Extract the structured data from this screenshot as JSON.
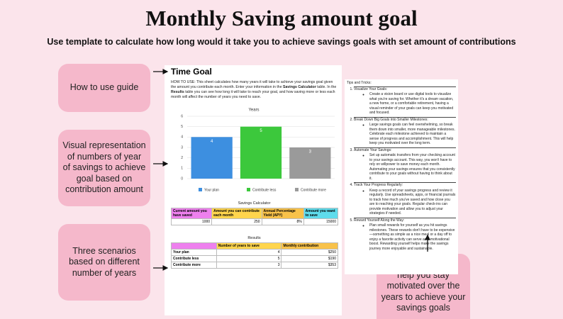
{
  "header": {
    "title": "Monthly Saving amount goal",
    "subtitle": "Use template to calculate how long would it take you to achieve savings goals with set amount of contributions"
  },
  "callouts": [
    "How to use guide",
    "Visual representation of numbers of year of savings to achieve goal based on contribution amount",
    "Three scenarios based on different number of years",
    "Tips and tricks to help you stay motivated over the years to achieve your savings goals"
  ],
  "sheet": {
    "title": "Time Goal",
    "instructions": [
      "HOW TO USE: This sheet calculates how many years it will take to achieve your savings goal given the amount you contribute each month. Enter your information in the ",
      "Savings Calculator",
      " table. In the ",
      "Results",
      " table you can see how long it will take to reach your goal, and how saving more or less each month will affect the number of years you need to save."
    ],
    "chart_data": {
      "type": "bar",
      "title": "Years",
      "categories": [
        "Your plan",
        "Contribute less",
        "Contribute more"
      ],
      "values": [
        4,
        5,
        3
      ],
      "colors": [
        "#3d8fe0",
        "#3cc83c",
        "#9a9a9a"
      ],
      "ylim": [
        0,
        6
      ],
      "yticks": [
        0,
        1,
        2,
        3,
        4,
        5,
        6
      ],
      "grid": true
    },
    "calculator": {
      "title": "Savings Calculator",
      "headers": [
        "Current amount you have saved",
        "Amount you can contribute each month",
        "Annual Percentage Yield (APY)",
        "Amount you want to save"
      ],
      "header_colors": [
        "#ee80ee",
        "#ffd54d",
        "#f8c24a",
        "#5fdcec"
      ],
      "row": [
        1000,
        250,
        "8%",
        15000
      ]
    },
    "results": {
      "title": "Results",
      "headers": [
        "Number of years to save",
        "Monthly contribution"
      ],
      "rows": [
        [
          "Your plan",
          4,
          "$250"
        ],
        [
          "Contribute less",
          5,
          "$190"
        ],
        [
          "Contribute more",
          3,
          "$353"
        ]
      ]
    }
  },
  "tips": {
    "title": "Tips and Tricks:",
    "items": [
      {
        "heading": "Visualize Your Goals:",
        "body": "Create a vision board or use digital tools to visualize what you're saving for. Whether it's a dream vacation, a new home, or a comfortable retirement, having a visual reminder of your goals can keep you motivated and focused."
      },
      {
        "heading": "Break Down Big Goals into Smaller Milestones:",
        "body": "Large savings goals can feel overwhelming, so break them down into smaller, more manageable milestones. Celebrate each milestone achieved to maintain a sense of progress and accomplishment. This will help keep you motivated over the long term."
      },
      {
        "heading": "Automate Your Savings:",
        "body": "Set up automatic transfers from your checking account to your savings account. This way, you won't have to rely on willpower to save money each month. Automating your savings ensures that you consistently contribute to your goals without having to think about it."
      },
      {
        "heading": "Track Your Progress Regularly:",
        "body": "Keep a record of your savings progress and review it regularly. Use spreadsheets, apps, or financial journals to track how much you've saved and how close you are to reaching your goals. Regular check-ins can provide motivation and allow you to adjust your strategies if needed."
      },
      {
        "heading": "Reward Yourself Along the Way:",
        "body": "Plan small rewards for yourself as you hit savings milestones. These rewards don't have to be expensive—something as simple as a nice meal or a day off to enjoy a favorite activity can serve as a motivational boost. Rewarding yourself helps make the savings journey more enjoyable and sustainable."
      }
    ]
  }
}
